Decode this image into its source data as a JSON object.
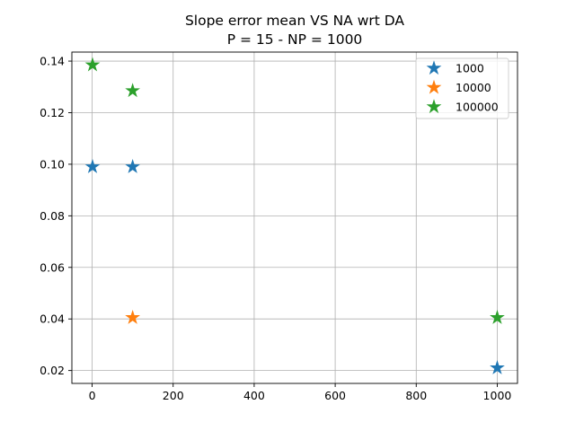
{
  "chart_data": {
    "type": "scatter",
    "title": "Slope error mean VS NA wrt DA",
    "subtitle": "P = 15 - NP = 1000",
    "xlabel": "",
    "ylabel": "",
    "xlim": [
      -50,
      1050
    ],
    "ylim": [
      0.015,
      0.1435
    ],
    "x_ticks": [
      0,
      200,
      400,
      600,
      800,
      1000
    ],
    "y_ticks": [
      0.02,
      0.04,
      0.06,
      0.08,
      0.1,
      0.12,
      0.14
    ],
    "x_tick_labels": [
      "0",
      "200",
      "400",
      "600",
      "800",
      "1000"
    ],
    "y_tick_labels": [
      "0.02",
      "0.04",
      "0.06",
      "0.08",
      "0.10",
      "0.12",
      "0.14"
    ],
    "grid": true,
    "marker": "star",
    "legend_position": "top-right",
    "series": [
      {
        "name": "1000",
        "color": "#1f77b4",
        "points": [
          [
            1,
            0.099
          ],
          [
            100,
            0.099
          ],
          [
            1000,
            0.021
          ]
        ]
      },
      {
        "name": "10000",
        "color": "#ff7f0e",
        "points": [
          [
            100,
            0.0405
          ]
        ]
      },
      {
        "name": "100000",
        "color": "#2ca02c",
        "points": [
          [
            1,
            0.1385
          ],
          [
            100,
            0.1285
          ],
          [
            1000,
            0.0405
          ]
        ]
      }
    ]
  }
}
